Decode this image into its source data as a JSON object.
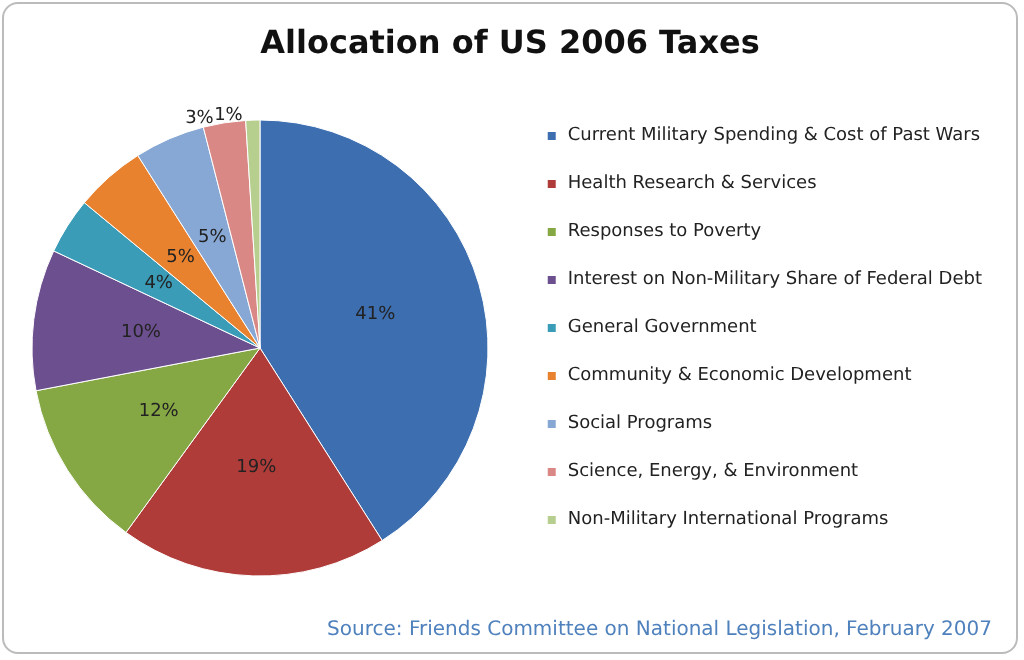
{
  "chart_data": {
    "type": "pie",
    "title": "Allocation of US 2006 Taxes",
    "categories": [
      "Current Military Spending & Cost of Past Wars",
      "Health Research & Services",
      "Responses to Poverty",
      "Interest on Non-Military Share of Federal Debt",
      "General Government",
      "Community & Economic Development",
      "Social Programs",
      "Science, Energy, & Environment",
      "Non-Military International Programs"
    ],
    "values": [
      41,
      19,
      12,
      10,
      4,
      5,
      5,
      3,
      1
    ],
    "value_labels": [
      "41%",
      "19%",
      "12%",
      "10%",
      "4%",
      "5%",
      "5%",
      "3%",
      "1%"
    ],
    "colors": [
      "#3d6eb0",
      "#b03c3a",
      "#86a844",
      "#6b4f8e",
      "#3a9cb7",
      "#e8822f",
      "#87a7d4",
      "#d98885",
      "#b7cf8e"
    ],
    "legend": "right",
    "annotations": [
      "Source: Friends Committee on National Legislation, February 2007"
    ]
  }
}
